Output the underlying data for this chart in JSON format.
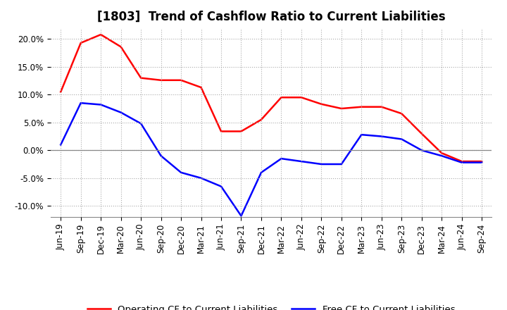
{
  "title": "[1803]  Trend of Cashflow Ratio to Current Liabilities",
  "ylim": [
    -0.12,
    0.22
  ],
  "yticks": [
    -0.1,
    -0.05,
    0.0,
    0.05,
    0.1,
    0.15,
    0.2
  ],
  "ytick_labels": [
    "-10.0%",
    "-5.0%",
    "0.0%",
    "5.0%",
    "10.0%",
    "15.0%",
    "20.0%"
  ],
  "x_labels": [
    "Jun-19",
    "Sep-19",
    "Dec-19",
    "Mar-20",
    "Jun-20",
    "Sep-20",
    "Dec-20",
    "Mar-21",
    "Jun-21",
    "Sep-21",
    "Dec-21",
    "Mar-22",
    "Jun-22",
    "Sep-22",
    "Dec-22",
    "Mar-23",
    "Jun-23",
    "Sep-23",
    "Dec-23",
    "Mar-24",
    "Jun-24",
    "Sep-24"
  ],
  "operating_cf": [
    0.105,
    0.193,
    0.208,
    0.186,
    0.13,
    0.126,
    0.126,
    0.113,
    0.034,
    0.034,
    0.055,
    0.095,
    0.095,
    0.083,
    0.075,
    0.078,
    0.078,
    0.066,
    0.03,
    -0.005,
    -0.02,
    -0.02
  ],
  "free_cf": [
    0.01,
    0.085,
    0.082,
    0.068,
    0.048,
    -0.01,
    -0.04,
    -0.05,
    -0.065,
    -0.118,
    -0.04,
    -0.015,
    -0.02,
    -0.025,
    -0.025,
    0.028,
    0.025,
    0.02,
    0.0,
    -0.01,
    -0.022,
    -0.022
  ],
  "operating_color": "#ff0000",
  "free_color": "#0000ff",
  "background_color": "#ffffff",
  "grid_color": "#aaaaaa",
  "legend_operating": "Operating CF to Current Liabilities",
  "legend_free": "Free CF to Current Liabilities",
  "title_fontsize": 12,
  "tick_fontsize": 8.5,
  "legend_fontsize": 9.5
}
